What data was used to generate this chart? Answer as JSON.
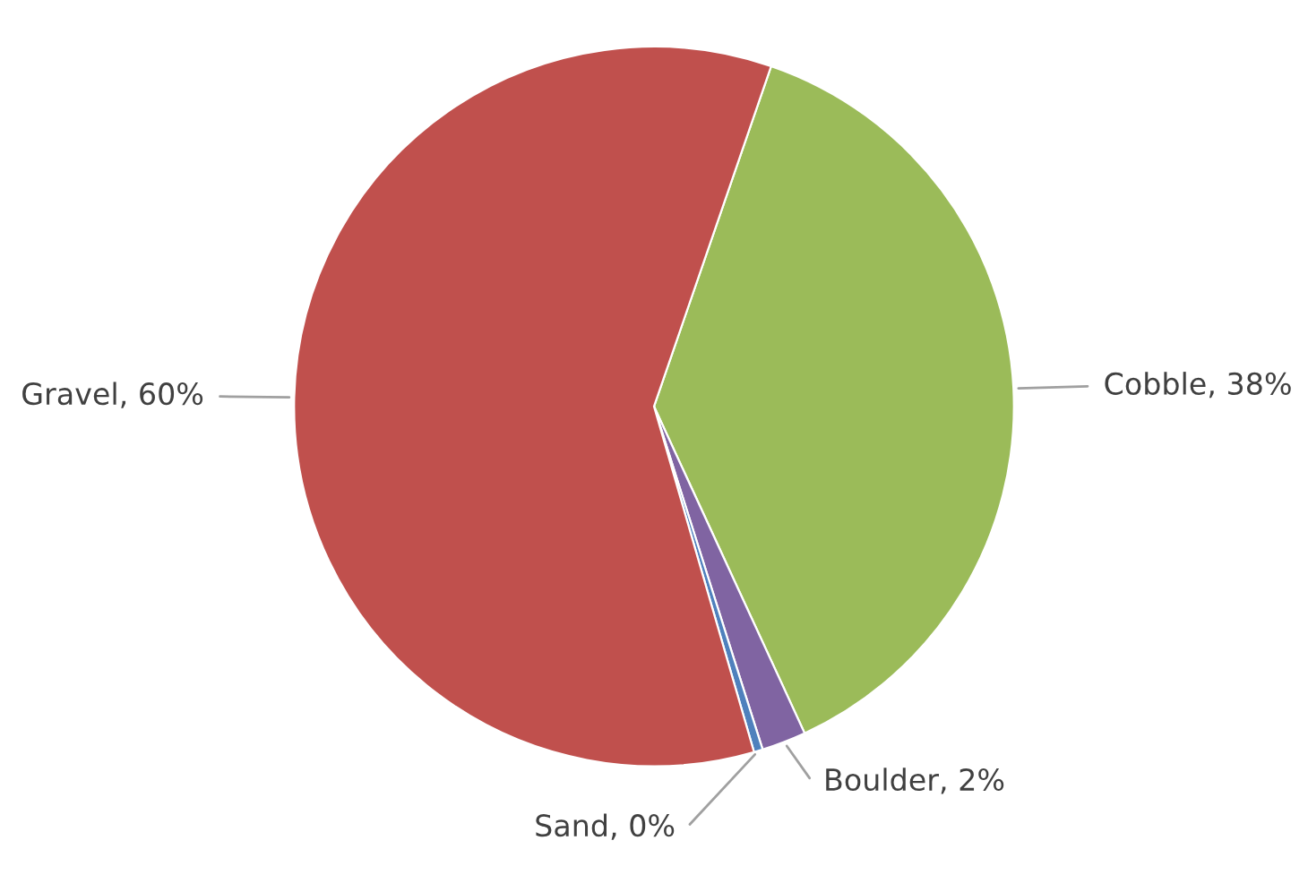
{
  "chart_data": {
    "type": "pie",
    "categories": [
      "Cobble",
      "Boulder",
      "Sand",
      "Gravel"
    ],
    "values": [
      38,
      2,
      0.4,
      60
    ],
    "colors": [
      "#9bbb59",
      "#8064a2",
      "#4f81bd",
      "#c0504d"
    ],
    "value_labels": [
      "38%",
      "2%",
      "0%",
      "60%"
    ]
  }
}
